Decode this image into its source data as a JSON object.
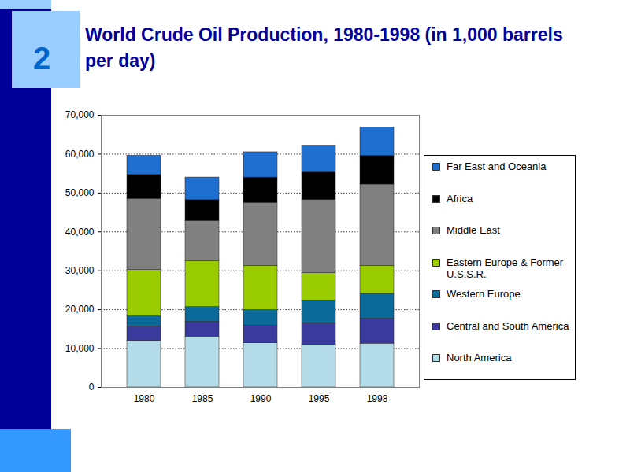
{
  "chart_data": {
    "type": "bar",
    "stacked": true,
    "title": "World Crude Oil Production, 1980-1998 (in 1,000 barrels per day)",
    "badge": "2",
    "categories": [
      "1980",
      "1985",
      "1990",
      "1995",
      "1998"
    ],
    "series": [
      {
        "name": "North America",
        "color": "#b4dce8",
        "values": [
          12000,
          13100,
          11400,
          11000,
          11300
        ]
      },
      {
        "name": "Central and South America",
        "color": "#3a3a9e",
        "values": [
          3700,
          3800,
          4500,
          5500,
          6400
        ]
      },
      {
        "name": "Western Europe",
        "color": "#0b6a9a",
        "values": [
          2600,
          3800,
          4000,
          5900,
          6400
        ]
      },
      {
        "name": "Eastern Europe & Former U.S.S.R.",
        "color": "#99cc00",
        "values": [
          11900,
          11800,
          11300,
          7000,
          7100
        ]
      },
      {
        "name": "Middle East",
        "color": "#808080",
        "values": [
          18300,
          10300,
          16300,
          18800,
          21000
        ]
      },
      {
        "name": "Africa",
        "color": "#000000",
        "values": [
          6200,
          5400,
          6500,
          7100,
          7400
        ]
      },
      {
        "name": "Far East and Oceania",
        "color": "#1f6fd0",
        "values": [
          4900,
          5800,
          6500,
          6900,
          7300
        ]
      }
    ],
    "ylim": [
      0,
      70000
    ],
    "yticks": [
      0,
      {
        "value": 10000,
        "label": "10,000"
      },
      {
        "value": 20000,
        "label": "20,000"
      },
      {
        "value": 30000,
        "label": "30,000"
      },
      {
        "value": 40000,
        "label": "40,000"
      },
      {
        "value": 50000,
        "label": "50,000"
      },
      {
        "value": 60000,
        "label": "60,000"
      },
      {
        "value": 70000,
        "label": "70,000"
      }
    ],
    "grid": true,
    "legend": "right"
  }
}
